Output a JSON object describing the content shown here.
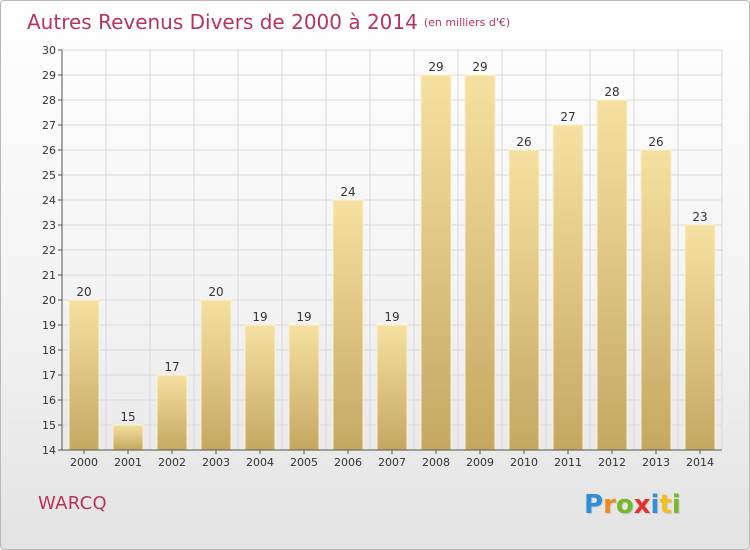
{
  "title": {
    "main": "Autres Revenus Divers de 2000 à 2014",
    "unit": "(en milliers d'€)"
  },
  "place_label": "WARCQ",
  "brand": {
    "letters": [
      "P",
      "r",
      "o",
      "x",
      "i",
      "t",
      "i"
    ],
    "colors": [
      "#2f8fd8",
      "#f08a1c",
      "#77b82a",
      "#e8312f",
      "#2f8fd8",
      "#f2c01e",
      "#77b82a"
    ]
  },
  "colors": {
    "title": "#b5365c",
    "bar_light": "#f6e0a1",
    "bar_dark": "#c4a862",
    "grid": "#d8d8d8",
    "axis": "#555555"
  },
  "chart_data": {
    "type": "bar",
    "title": "Autres Revenus Divers de 2000 à 2014",
    "subtitle": "(en milliers d'€)",
    "categories": [
      "2000",
      "2001",
      "2002",
      "2003",
      "2004",
      "2005",
      "2006",
      "2007",
      "2008",
      "2009",
      "2010",
      "2011",
      "2012",
      "2013",
      "2014"
    ],
    "values": [
      20,
      15,
      17,
      20,
      19,
      19,
      24,
      19,
      29,
      29,
      26,
      27,
      28,
      26,
      23
    ],
    "ylim": [
      14,
      30
    ],
    "yticks": [
      14,
      15,
      16,
      17,
      18,
      19,
      20,
      21,
      22,
      23,
      24,
      25,
      26,
      27,
      28,
      29,
      30
    ],
    "grid": true,
    "data_labels": true
  }
}
